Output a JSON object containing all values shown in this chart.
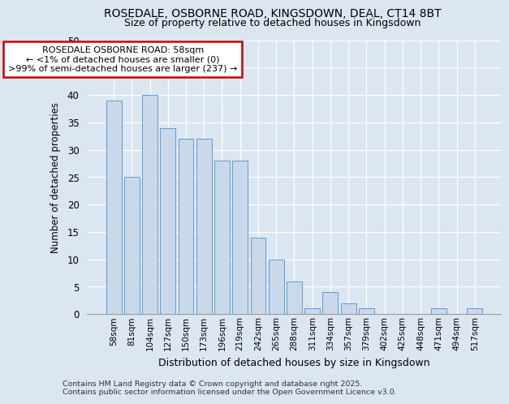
{
  "title1": "ROSEDALE, OSBORNE ROAD, KINGSDOWN, DEAL, CT14 8BT",
  "title2": "Size of property relative to detached houses in Kingsdown",
  "xlabel": "Distribution of detached houses by size in Kingsdown",
  "ylabel": "Number of detached properties",
  "categories": [
    "58sqm",
    "81sqm",
    "104sqm",
    "127sqm",
    "150sqm",
    "173sqm",
    "196sqm",
    "219sqm",
    "242sqm",
    "265sqm",
    "288sqm",
    "311sqm",
    "334sqm",
    "357sqm",
    "379sqm",
    "402sqm",
    "425sqm",
    "448sqm",
    "471sqm",
    "494sqm",
    "517sqm"
  ],
  "values": [
    39,
    25,
    40,
    34,
    32,
    32,
    28,
    28,
    14,
    10,
    6,
    1,
    4,
    2,
    1,
    0,
    0,
    0,
    1,
    0,
    1
  ],
  "bar_color": "#c9d9ea",
  "bar_edge_color": "#5b9bd5",
  "background_color": "#dce6f1",
  "plot_bg_color": "#dce6f1",
  "ylim": [
    0,
    50
  ],
  "yticks": [
    0,
    5,
    10,
    15,
    20,
    25,
    30,
    35,
    40,
    45,
    50
  ],
  "annotation_title": "ROSEDALE OSBORNE ROAD: 58sqm",
  "annotation_line1": "← <1% of detached houses are smaller (0)",
  "annotation_line2": ">99% of semi-detached houses are larger (237) →",
  "annotation_box_color": "#ffffff",
  "annotation_box_edge": "#cc0000",
  "footer1": "Contains HM Land Registry data © Crown copyright and database right 2025.",
  "footer2": "Contains public sector information licensed under the Open Government Licence v3.0."
}
